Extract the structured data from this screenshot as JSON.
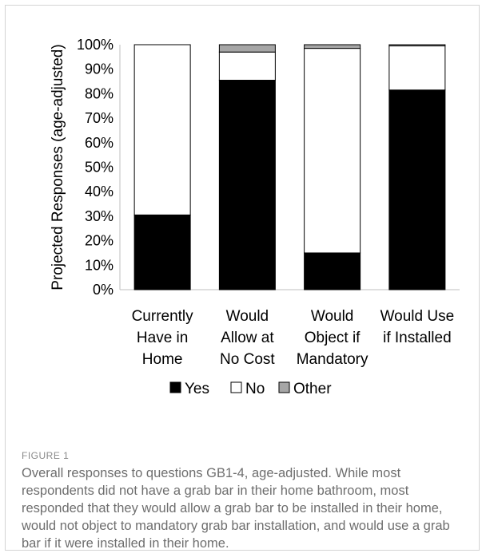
{
  "chart_data": {
    "type": "bar",
    "stacked": true,
    "ylabel": "Projected Responses (age-adjusted)",
    "ylim": [
      0,
      100
    ],
    "y_ticks": [
      "0%",
      "10%",
      "20%",
      "30%",
      "40%",
      "50%",
      "60%",
      "70%",
      "80%",
      "90%",
      "100%"
    ],
    "categories": [
      [
        "Currently",
        "Have in",
        "Home"
      ],
      [
        "Would",
        "Allow at",
        "No Cost"
      ],
      [
        "Would",
        "Object if",
        "Mandatory"
      ],
      [
        "Would Use",
        "if Installed",
        ""
      ]
    ],
    "series": [
      {
        "name": "Yes",
        "color": "#000000",
        "values": [
          30.5,
          85.5,
          15,
          81.5
        ]
      },
      {
        "name": "No",
        "color": "#ffffff",
        "values": [
          69.5,
          11.5,
          83.5,
          18
        ]
      },
      {
        "name": "Other",
        "color": "#a6a6a6",
        "values": [
          0,
          3,
          1.5,
          0.5
        ]
      }
    ],
    "legend_position": "bottom"
  },
  "caption": {
    "label": "FIGURE 1",
    "text": "Overall responses to questions GB1-4, age-adjusted. While most respondents did not have a grab bar in their home bathroom, most responded that they would allow a grab bar to be installed in their home, would not object to mandatory grab bar installation, and would use a grab bar if it were installed in their home."
  }
}
